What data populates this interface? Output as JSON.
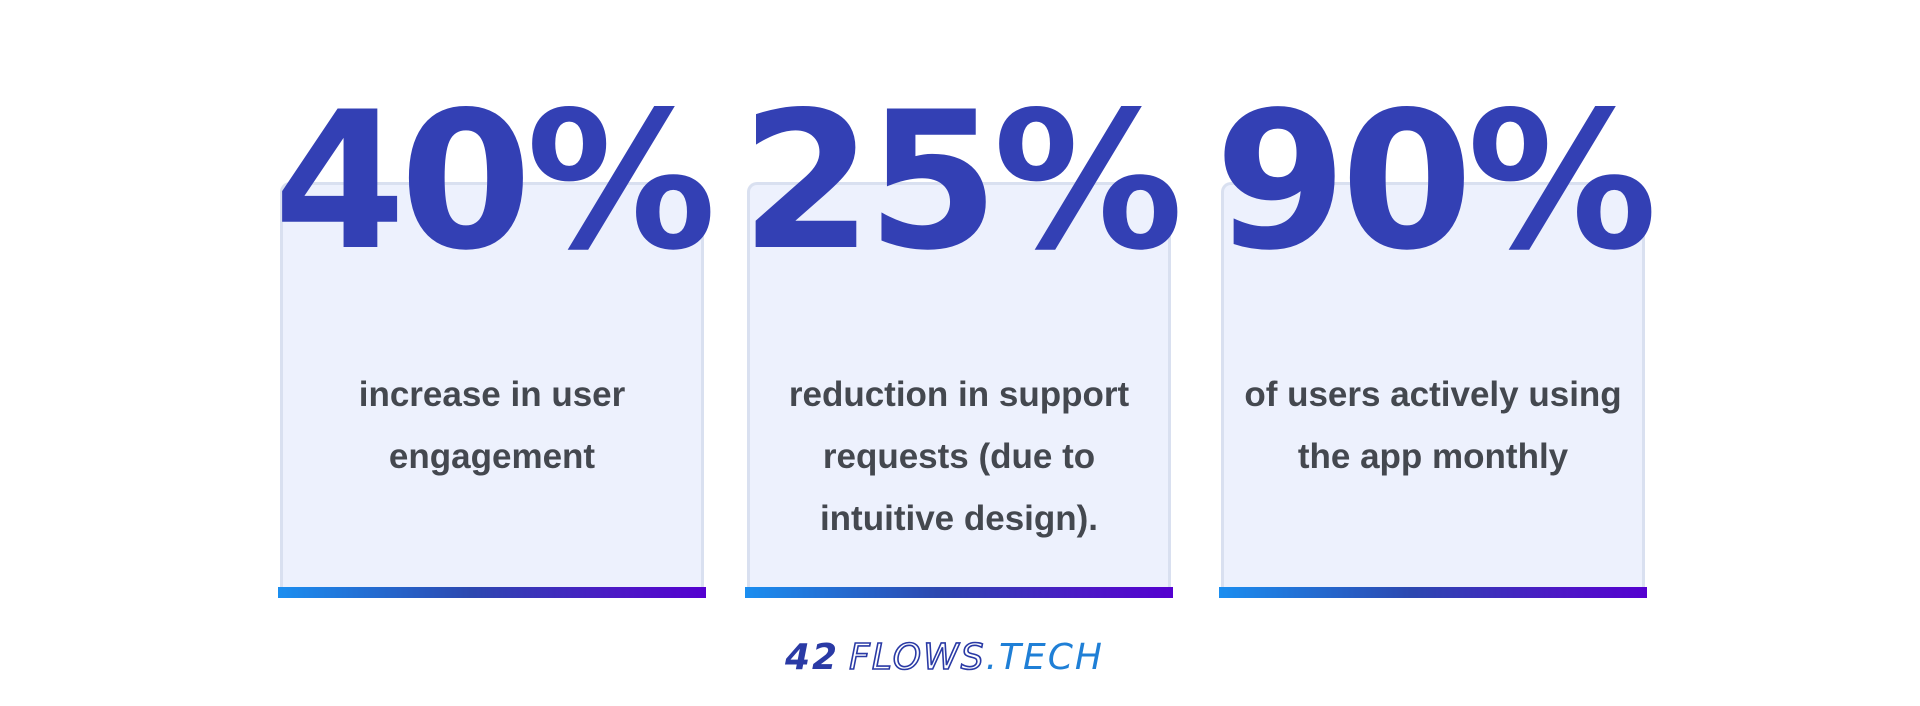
{
  "stats": [
    {
      "value": "40%",
      "description": "increase in user engagement"
    },
    {
      "value": "25%",
      "description": "reduction in support requests (due to intuitive design)."
    },
    {
      "value": "90%",
      "description": "of users actively using the app monthly"
    }
  ],
  "brand": {
    "number": "42",
    "name": "FLOWS",
    "tld": ".TECH"
  },
  "colors": {
    "accent": "#3340b4",
    "card_background": "#edf1fd",
    "text": "#44484f",
    "bar_gradient_start": "#1b8ef0",
    "bar_gradient_end": "#5400d0"
  }
}
